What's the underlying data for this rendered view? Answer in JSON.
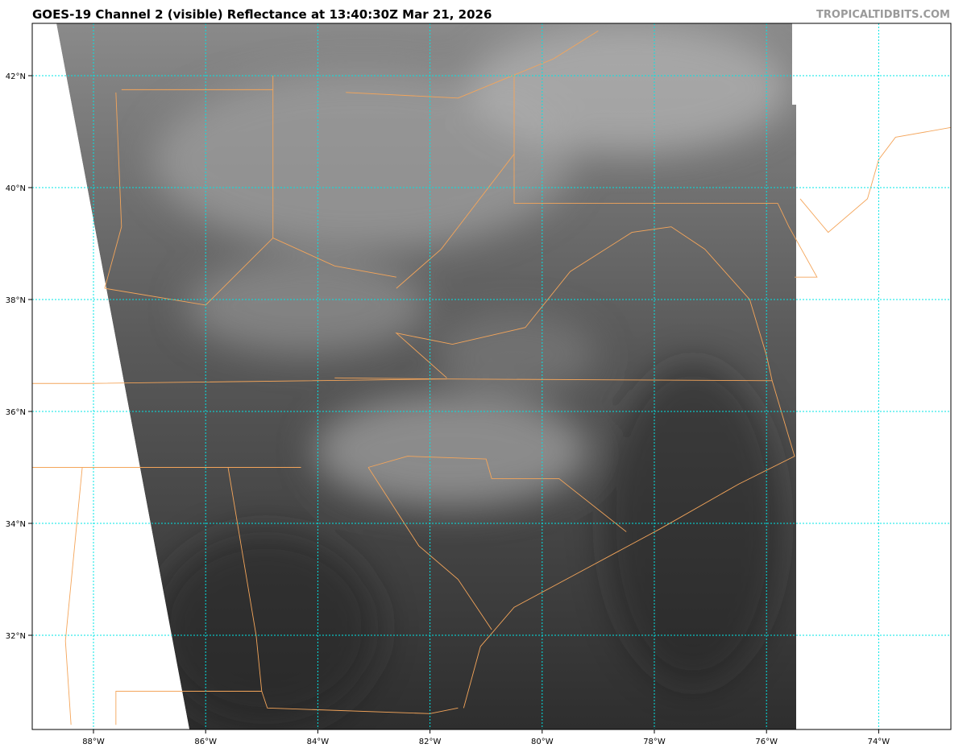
{
  "header": {
    "title": "GOES-19 Channel 2 (visible) Reflectance at 13:40:30Z Mar 21, 2026",
    "credit": "TROPICALTIDBITS.COM"
  },
  "map": {
    "lon_ticks": [
      "88°W",
      "86°W",
      "84°W",
      "82°W",
      "80°W",
      "78°W",
      "76°W",
      "74°W"
    ],
    "lon_values": [
      -88,
      -86,
      -84,
      -82,
      -80,
      -78,
      -76,
      -74
    ],
    "lat_ticks": [
      "42°N",
      "40°N",
      "38°N",
      "36°N",
      "34°N",
      "32°N"
    ],
    "lat_values": [
      42,
      40,
      38,
      36,
      34,
      32
    ],
    "colors": {
      "gridlines": "#00e5e5",
      "boundaries": "#f4a55a",
      "imagery_dark": "#2c2c2c",
      "imagery_light": "#9a9a9a"
    }
  }
}
